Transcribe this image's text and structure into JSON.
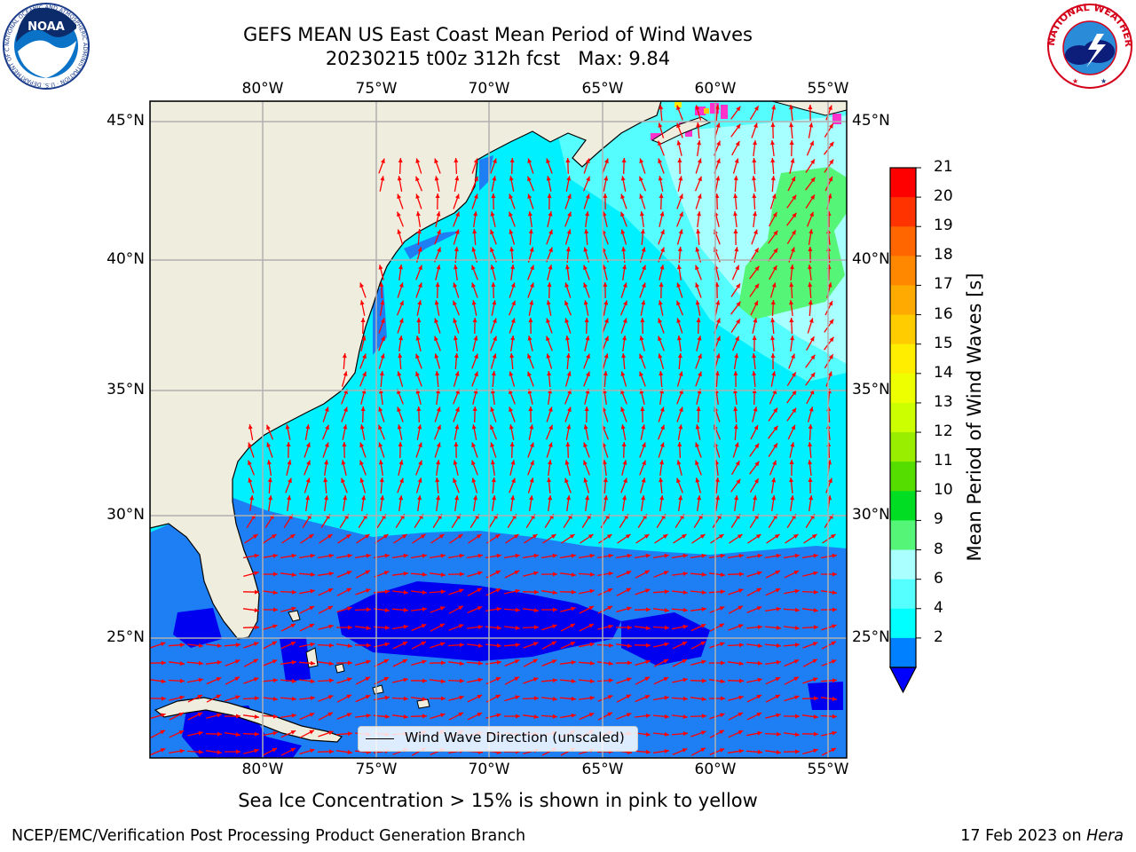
{
  "title": {
    "line1": "GEFS MEAN US East Coast Mean Period of Wind Waves",
    "line2": "20230215 t00z 312h fcst   Max: 9.84"
  },
  "map": {
    "lon_labels": [
      "80°W",
      "75°W",
      "70°W",
      "65°W",
      "60°W",
      "55°W"
    ],
    "lat_labels": [
      "45°N",
      "40°N",
      "35°N",
      "30°N",
      "25°N"
    ],
    "land_color": "#efedde",
    "grid_color": "#b0b0b0",
    "arrow_color": "#ff0000",
    "legend_label": "Wind Wave Direction (unscaled)"
  },
  "colorbar": {
    "label": "Mean Period of Wind Waves [s]",
    "ticks": [
      "21",
      "20",
      "19",
      "18",
      "17",
      "16",
      "15",
      "14",
      "13",
      "12",
      "11",
      "10",
      "9",
      "8",
      "6",
      "4",
      "2"
    ],
    "colors": [
      "#ff0000",
      "#ff3300",
      "#ff6600",
      "#ff8800",
      "#ffaa00",
      "#ffcc00",
      "#ffee00",
      "#eeff00",
      "#ccff00",
      "#99ee00",
      "#55dd00",
      "#00dd22",
      "#55f577",
      "#aaffff",
      "#55ffff",
      "#00ffff",
      "#0080ff"
    ],
    "extend_color": "#0000ff"
  },
  "footer": {
    "caption": "Sea Ice Concentration > 15% is shown in pink to yellow",
    "left": "NCEP/EMC/Verification Post Processing Product Generation Branch",
    "right_prefix": "17 Feb 2023 on ",
    "right_host": "Hera"
  },
  "logos": {
    "noaa_text": "NOAA",
    "noaa_ring": "NATIONAL OCEANIC AND ATMOSPHERIC ADMINISTRATION · U.S. DEPARTMENT OF COMMERCE",
    "nws_ring": "NATIONAL WEATHER SERVICE"
  }
}
